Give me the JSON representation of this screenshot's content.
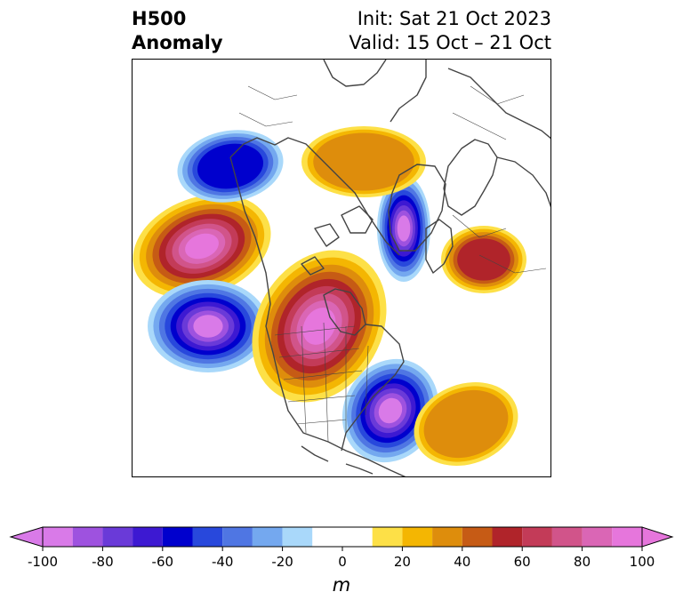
{
  "header": {
    "title_line1": "H500",
    "title_line2": "Anomaly",
    "init": "Init: Sat 21 Oct 2023",
    "valid": "Valid: 15 Oct – 21 Oct"
  },
  "colorbar": {
    "unit": "m",
    "ticks": [
      "-100",
      "-80",
      "-60",
      "-40",
      "-20",
      "0",
      "20",
      "40",
      "60",
      "80",
      "100"
    ],
    "bins": [
      {
        "from": -100,
        "to": -90,
        "color": "#d97ae8"
      },
      {
        "from": -90,
        "to": -80,
        "color": "#9e52df"
      },
      {
        "from": -80,
        "to": -70,
        "color": "#6a3ad8"
      },
      {
        "from": -70,
        "to": -60,
        "color": "#3d19d2"
      },
      {
        "from": -60,
        "to": -50,
        "color": "#0000cd"
      },
      {
        "from": -50,
        "to": -40,
        "color": "#2848dc"
      },
      {
        "from": -40,
        "to": -30,
        "color": "#4f76e3"
      },
      {
        "from": -30,
        "to": -20,
        "color": "#74a8ef"
      },
      {
        "from": -20,
        "to": -10,
        "color": "#a9d8fa"
      },
      {
        "from": -10,
        "to": 10,
        "color": "#ffffff"
      },
      {
        "from": 10,
        "to": 20,
        "color": "#fde047"
      },
      {
        "from": 20,
        "to": 30,
        "color": "#f4b602"
      },
      {
        "from": 30,
        "to": 40,
        "color": "#de8d0c"
      },
      {
        "from": 40,
        "to": 50,
        "color": "#c65b15"
      },
      {
        "from": 50,
        "to": 60,
        "color": "#b0242a"
      },
      {
        "from": 60,
        "to": 70,
        "color": "#c33b58"
      },
      {
        "from": 70,
        "to": 80,
        "color": "#d1548a"
      },
      {
        "from": 80,
        "to": 90,
        "color": "#da66b5"
      },
      {
        "from": 90,
        "to": 100,
        "color": "#e676dc"
      }
    ],
    "under_color": "#d97ae8",
    "over_color": "#e676dc"
  },
  "map": {
    "coastline_color": "#444444",
    "anomaly_centers": [
      {
        "name": "alaska-ridge",
        "peak": 100
      },
      {
        "name": "gulf-of-alaska-trough",
        "peak": -100
      },
      {
        "name": "western-north-america-ridge",
        "peak": 100
      },
      {
        "name": "eastern-north-america-trough",
        "peak": -100
      },
      {
        "name": "arctic-trough",
        "peak": -90
      },
      {
        "name": "siberia-trough",
        "peak": -50
      },
      {
        "name": "europe-ridge",
        "peak": 50
      },
      {
        "name": "north-atlantic-ridge",
        "peak": 30
      },
      {
        "name": "greenland-ridge",
        "peak": 30
      }
    ]
  }
}
